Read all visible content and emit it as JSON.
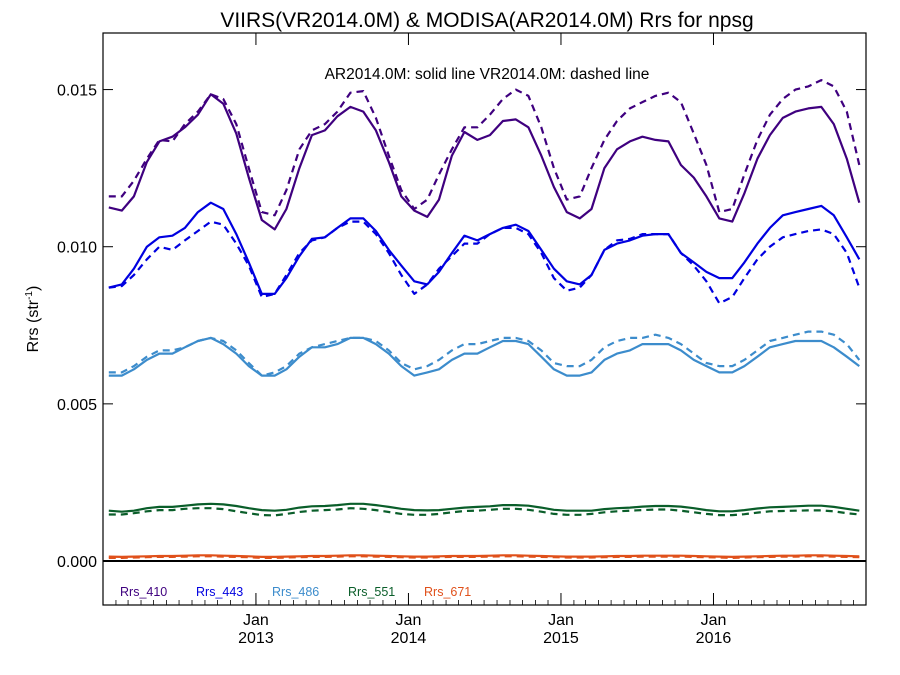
{
  "chart_data": {
    "type": "line",
    "title": "VIIRS(VR2014.0M) & MODISA(AR2014.0M)  Rrs for npsg",
    "annotation": "AR2014.0M: solid line   VR2014.0M: dashed line",
    "ylabel_main": "Rrs (str",
    "ylabel_sup": "-1",
    "ylabel_close": ")",
    "ylim": [
      -0.0014,
      0.0168
    ],
    "yticks": [
      0.0,
      0.005,
      0.01,
      0.015
    ],
    "ytick_labels": [
      "0.000",
      "0.005",
      "0.010",
      "0.015"
    ],
    "xlim": [
      "2012-01-01",
      "2016-12-31"
    ],
    "xticks": [
      {
        "date": "2013-01-01",
        "label1": "Jan",
        "label2": "2013"
      },
      {
        "date": "2014-01-01",
        "label1": "Jan",
        "label2": "2014"
      },
      {
        "date": "2015-01-01",
        "label1": "Jan",
        "label2": "2015"
      },
      {
        "date": "2016-01-01",
        "label1": "Jan",
        "label2": "2016"
      }
    ],
    "zero_line": 0.0,
    "grid": false,
    "legend_placement": "bottom-left",
    "x_start": "2012-01",
    "x_step": "1 month",
    "series": [
      {
        "name": "Rrs_410",
        "color": "#3f007f",
        "style": "solid",
        "values": [
          0.01125,
          0.01115,
          0.0116,
          0.0127,
          0.01335,
          0.0135,
          0.0138,
          0.0142,
          0.01485,
          0.01455,
          0.0136,
          0.0122,
          0.01085,
          0.01055,
          0.0112,
          0.0125,
          0.01355,
          0.0137,
          0.01415,
          0.01445,
          0.0143,
          0.0137,
          0.0127,
          0.0116,
          0.01115,
          0.01095,
          0.0115,
          0.0129,
          0.01365,
          0.0134,
          0.01355,
          0.014,
          0.01405,
          0.0138,
          0.0129,
          0.0119,
          0.0111,
          0.0109,
          0.0112,
          0.0125,
          0.0131,
          0.01335,
          0.0135,
          0.0134,
          0.01335,
          0.0126,
          0.0122,
          0.0116,
          0.0109,
          0.0108,
          0.0117,
          0.0128,
          0.01355,
          0.0141,
          0.0143,
          0.0144,
          0.01445,
          0.0139,
          0.0128,
          0.0114
        ]
      },
      {
        "name": "",
        "color": "#3f007f",
        "style": "dashed",
        "values": [
          0.0116,
          0.0116,
          0.0121,
          0.0128,
          0.0134,
          0.01335,
          0.0139,
          0.0143,
          0.01485,
          0.0147,
          0.0139,
          0.0125,
          0.0111,
          0.011,
          0.0118,
          0.0131,
          0.0137,
          0.0139,
          0.0143,
          0.0149,
          0.01495,
          0.0141,
          0.0129,
          0.0118,
          0.0112,
          0.0115,
          0.0123,
          0.0131,
          0.0138,
          0.0138,
          0.0142,
          0.0147,
          0.015,
          0.0148,
          0.0138,
          0.0125,
          0.0115,
          0.0116,
          0.0125,
          0.0134,
          0.014,
          0.0144,
          0.0146,
          0.0148,
          0.0149,
          0.0146,
          0.0136,
          0.0126,
          0.0111,
          0.0112,
          0.0123,
          0.0134,
          0.0142,
          0.0147,
          0.015,
          0.0151,
          0.0153,
          0.0151,
          0.0143,
          0.0126
        ]
      },
      {
        "name": "Rrs_443",
        "color": "#0000e0",
        "style": "solid",
        "values": [
          0.0087,
          0.0088,
          0.0093,
          0.01,
          0.0103,
          0.01035,
          0.0106,
          0.0111,
          0.0114,
          0.0112,
          0.0104,
          0.0095,
          0.0085,
          0.0085,
          0.009,
          0.0097,
          0.01025,
          0.0103,
          0.0106,
          0.0109,
          0.0109,
          0.0105,
          0.0099,
          0.0094,
          0.0089,
          0.0088,
          0.0092,
          0.0098,
          0.01035,
          0.0102,
          0.0104,
          0.0106,
          0.0107,
          0.0105,
          0.0099,
          0.0093,
          0.0089,
          0.0088,
          0.0091,
          0.0099,
          0.0101,
          0.0102,
          0.01035,
          0.0104,
          0.0104,
          0.0098,
          0.0095,
          0.0092,
          0.009,
          0.009,
          0.0095,
          0.0101,
          0.0106,
          0.011,
          0.0111,
          0.0112,
          0.0113,
          0.011,
          0.0103,
          0.0096
        ]
      },
      {
        "name": "",
        "color": "#0000e0",
        "style": "dashed",
        "values": [
          0.0087,
          0.00875,
          0.0091,
          0.0096,
          0.01,
          0.0099,
          0.0102,
          0.0105,
          0.0108,
          0.0107,
          0.0101,
          0.0094,
          0.0084,
          0.0085,
          0.0091,
          0.0098,
          0.0102,
          0.0103,
          0.0106,
          0.0108,
          0.0108,
          0.0104,
          0.0098,
          0.0091,
          0.0085,
          0.0088,
          0.0093,
          0.0097,
          0.0101,
          0.0101,
          0.0104,
          0.0106,
          0.0106,
          0.0104,
          0.0098,
          0.009,
          0.0086,
          0.0087,
          0.0091,
          0.0099,
          0.0102,
          0.01025,
          0.0104,
          0.0104,
          0.0104,
          0.0098,
          0.0094,
          0.0089,
          0.0082,
          0.0084,
          0.009,
          0.0096,
          0.01,
          0.0103,
          0.0104,
          0.0105,
          0.01055,
          0.0104,
          0.0098,
          0.0087
        ]
      },
      {
        "name": "Rrs_486",
        "color": "#3c8ccc",
        "style": "solid",
        "values": [
          0.0059,
          0.0059,
          0.0061,
          0.0064,
          0.0066,
          0.0066,
          0.0068,
          0.007,
          0.0071,
          0.0069,
          0.0066,
          0.0062,
          0.0059,
          0.0059,
          0.0061,
          0.0065,
          0.0068,
          0.0068,
          0.0069,
          0.0071,
          0.0071,
          0.0069,
          0.0066,
          0.0062,
          0.0059,
          0.006,
          0.0061,
          0.0064,
          0.0066,
          0.0066,
          0.0068,
          0.007,
          0.007,
          0.0069,
          0.0065,
          0.0061,
          0.0059,
          0.0059,
          0.006,
          0.0064,
          0.0066,
          0.0067,
          0.0069,
          0.0069,
          0.0069,
          0.0067,
          0.0064,
          0.0062,
          0.006,
          0.006,
          0.0062,
          0.0065,
          0.0068,
          0.0069,
          0.007,
          0.007,
          0.007,
          0.0068,
          0.0065,
          0.0062
        ]
      },
      {
        "name": "",
        "color": "#3c8ccc",
        "style": "dashed",
        "values": [
          0.006,
          0.006,
          0.0062,
          0.0065,
          0.0067,
          0.0067,
          0.0068,
          0.007,
          0.0071,
          0.007,
          0.0067,
          0.0063,
          0.0059,
          0.006,
          0.0062,
          0.0066,
          0.0068,
          0.0069,
          0.007,
          0.0071,
          0.0071,
          0.007,
          0.0067,
          0.0063,
          0.0061,
          0.0062,
          0.0064,
          0.0067,
          0.0069,
          0.0069,
          0.007,
          0.0071,
          0.0071,
          0.007,
          0.0067,
          0.0063,
          0.0062,
          0.0062,
          0.0064,
          0.0068,
          0.007,
          0.0071,
          0.0071,
          0.0072,
          0.0071,
          0.0069,
          0.0066,
          0.0063,
          0.0062,
          0.0062,
          0.0064,
          0.0067,
          0.007,
          0.0071,
          0.0072,
          0.0073,
          0.0073,
          0.0072,
          0.0069,
          0.0064
        ]
      },
      {
        "name": "Rrs_551",
        "color": "#0a5e2a",
        "style": "solid",
        "values": [
          0.0016,
          0.00157,
          0.0016,
          0.00168,
          0.00172,
          0.00172,
          0.00176,
          0.0018,
          0.00182,
          0.0018,
          0.00175,
          0.00168,
          0.00162,
          0.0016,
          0.00163,
          0.0017,
          0.00174,
          0.00175,
          0.00178,
          0.00182,
          0.00182,
          0.00178,
          0.00172,
          0.00166,
          0.00162,
          0.00161,
          0.00162,
          0.00166,
          0.0017,
          0.00172,
          0.00174,
          0.00178,
          0.00178,
          0.00176,
          0.0017,
          0.00163,
          0.0016,
          0.0016,
          0.0016,
          0.00165,
          0.00168,
          0.0017,
          0.00173,
          0.00175,
          0.00175,
          0.00173,
          0.00168,
          0.00162,
          0.00158,
          0.00158,
          0.00162,
          0.00167,
          0.00171,
          0.00172,
          0.00174,
          0.00176,
          0.00176,
          0.00172,
          0.00166,
          0.0016
        ]
      },
      {
        "name": "",
        "color": "#0a5e2a",
        "style": "dashed",
        "values": [
          0.00148,
          0.00148,
          0.00152,
          0.00158,
          0.00162,
          0.00162,
          0.00166,
          0.00168,
          0.00168,
          0.00165,
          0.00158,
          0.00152,
          0.00146,
          0.00145,
          0.0015,
          0.00156,
          0.0016,
          0.00162,
          0.00164,
          0.00168,
          0.00166,
          0.00162,
          0.00156,
          0.0015,
          0.00147,
          0.00147,
          0.0015,
          0.00155,
          0.00159,
          0.0016,
          0.00163,
          0.00166,
          0.00166,
          0.00163,
          0.00157,
          0.0015,
          0.00147,
          0.00147,
          0.0015,
          0.00155,
          0.00158,
          0.0016,
          0.00162,
          0.00164,
          0.00164,
          0.0016,
          0.00155,
          0.0015,
          0.00146,
          0.00146,
          0.00149,
          0.00154,
          0.00158,
          0.00159,
          0.0016,
          0.00161,
          0.00161,
          0.00158,
          0.00152,
          0.00148
        ]
      },
      {
        "name": "Rrs_671",
        "color": "#e0501a",
        "style": "solid",
        "values": [
          0.00014,
          0.00013,
          0.00014,
          0.00015,
          0.00016,
          0.00016,
          0.00017,
          0.00018,
          0.00018,
          0.00017,
          0.00016,
          0.00015,
          0.00013,
          0.00013,
          0.00014,
          0.00015,
          0.00016,
          0.00016,
          0.00017,
          0.00018,
          0.00018,
          0.00017,
          0.00016,
          0.00015,
          0.00014,
          0.00014,
          0.00015,
          0.00016,
          0.00016,
          0.00016,
          0.00017,
          0.00018,
          0.00018,
          0.00017,
          0.00016,
          0.00015,
          0.00014,
          0.00014,
          0.00014,
          0.00015,
          0.00016,
          0.00016,
          0.00017,
          0.00017,
          0.00017,
          0.00017,
          0.00016,
          0.00015,
          0.00014,
          0.00013,
          0.00014,
          0.00015,
          0.00016,
          0.00017,
          0.00017,
          0.00018,
          0.00018,
          0.00017,
          0.00016,
          0.00015
        ]
      },
      {
        "name": "",
        "color": "#e0501a",
        "style": "dashed",
        "values": [
          0.0001,
          0.0001,
          0.00011,
          0.00012,
          0.00013,
          0.00013,
          0.00014,
          0.00015,
          0.00015,
          0.00014,
          0.00013,
          0.00012,
          0.0001,
          0.0001,
          0.00011,
          0.00012,
          0.00013,
          0.00013,
          0.00014,
          0.00015,
          0.00015,
          0.00014,
          0.00013,
          0.00012,
          0.00011,
          0.00011,
          0.00012,
          0.00013,
          0.00013,
          0.00013,
          0.00014,
          0.00015,
          0.00015,
          0.00014,
          0.00013,
          0.00012,
          0.00011,
          0.00011,
          0.00011,
          0.00012,
          0.00013,
          0.00013,
          0.00014,
          0.00014,
          0.00014,
          0.00014,
          0.00013,
          0.00012,
          0.00011,
          0.0001,
          0.00011,
          0.00012,
          0.00013,
          0.00014,
          0.00014,
          0.00015,
          0.00015,
          0.00014,
          0.00013,
          0.00012
        ]
      }
    ]
  }
}
